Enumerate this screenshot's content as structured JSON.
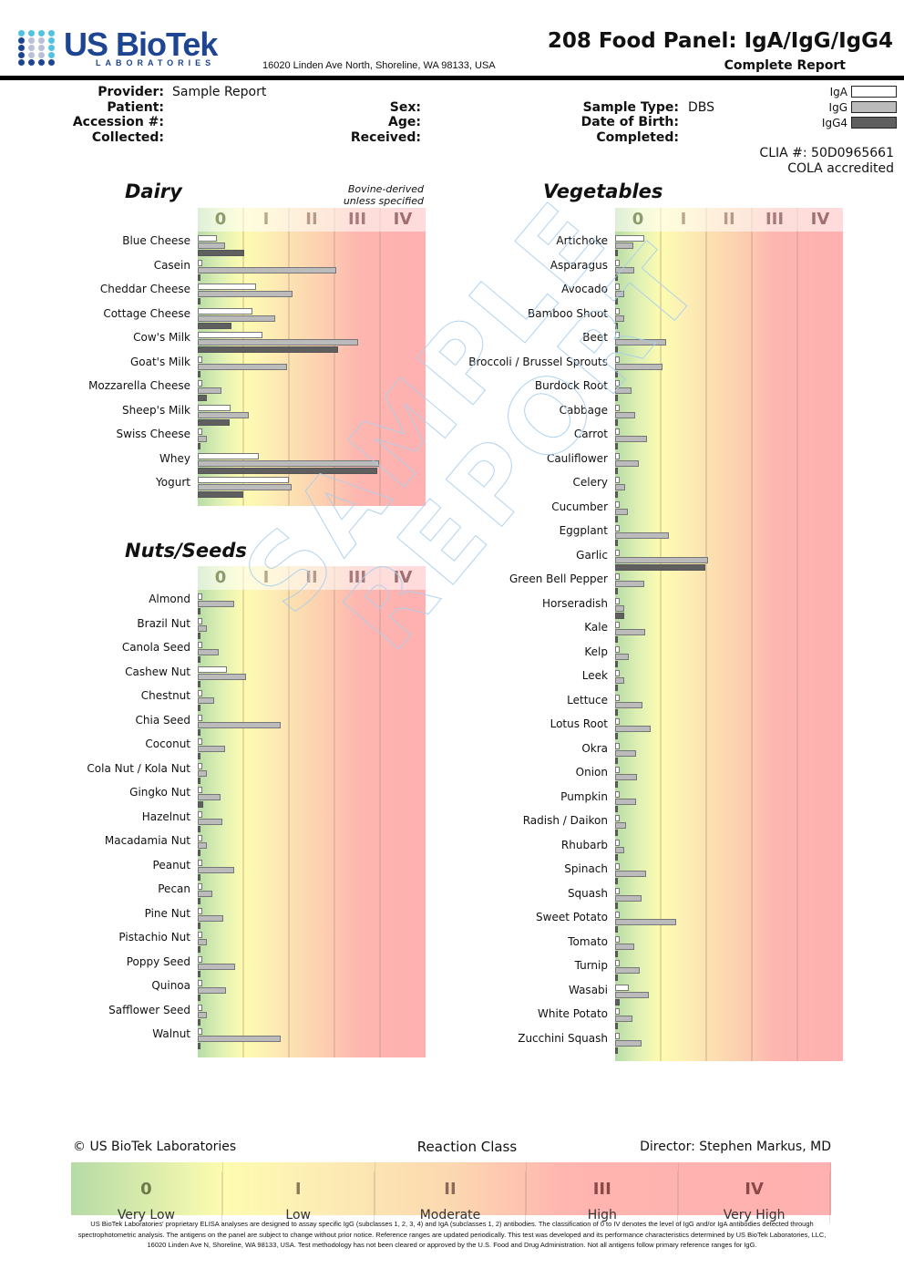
{
  "header": {
    "logo_main": "US BioTek",
    "logo_sub": "LABORATORIES",
    "address": "16020 Linden Ave North, Shoreline, WA 98133, USA",
    "title": "208 Food Panel: IgA/IgG/IgG4",
    "subtitle": "Complete Report"
  },
  "patient_info": {
    "provider_label": "Provider:",
    "provider_value": "Sample Report",
    "patient_label": "Patient:",
    "patient_value": "",
    "accession_label": "Accession #:",
    "accession_value": "",
    "collected_label": "Collected:",
    "collected_value": "",
    "sex_label": "Sex:",
    "sex_value": "",
    "age_label": "Age:",
    "age_value": "",
    "received_label": "Received:",
    "received_value": "",
    "sample_type_label": "Sample Type:",
    "sample_type_value": "DBS",
    "dob_label": "Date of Birth:",
    "dob_value": "",
    "completed_label": "Completed:",
    "completed_value": ""
  },
  "legend": [
    {
      "name": "IgA",
      "color": "#ffffff"
    },
    {
      "name": "IgG",
      "color": "#bbbbbb"
    },
    {
      "name": "IgG4",
      "color": "#5f5f5f"
    }
  ],
  "clia": {
    "number": "CLIA #: 50D0965661",
    "accreditation": "COLA accredited"
  },
  "watermark": {
    "line1": "SAMPLE",
    "line2": "REPORT"
  },
  "class_labels": [
    "0",
    "I",
    "II",
    "III",
    "IV"
  ],
  "class_label_colors": [
    "#8c9a6c",
    "#b9a98a",
    "#b99a8a",
    "#a97a7a",
    "#a07070"
  ],
  "chart_data": [
    {
      "type": "bar",
      "title": "Dairy",
      "note_line1": "Bovine-derived",
      "note_line2": "unless specified",
      "xlabel": "Reaction Class",
      "xlim": [
        0,
        5
      ],
      "series_names": [
        "IgA",
        "IgG",
        "IgG4"
      ],
      "categories": [
        "Blue Cheese",
        "Casein",
        "Cheddar Cheese",
        "Cottage Cheese",
        "Cow's Milk",
        "Goat's Milk",
        "Mozzarella Cheese",
        "Sheep's Milk",
        "Swiss Cheese",
        "Whey",
        "Yogurt"
      ],
      "series": [
        {
          "name": "IgA",
          "values": [
            0.42,
            0.1,
            1.28,
            1.2,
            1.42,
            0.1,
            0.1,
            0.72,
            0.1,
            1.34,
            2.0
          ]
        },
        {
          "name": "IgG",
          "values": [
            0.6,
            3.04,
            2.08,
            1.7,
            3.52,
            1.96,
            0.52,
            1.12,
            0.2,
            3.98,
            2.06
          ]
        },
        {
          "name": "IgG4",
          "values": [
            1.02,
            0.04,
            0.04,
            0.74,
            3.08,
            0.04,
            0.2,
            0.7,
            0.04,
            3.94,
            1.0
          ]
        }
      ]
    },
    {
      "type": "bar",
      "title": "Nuts/Seeds",
      "xlabel": "Reaction Class",
      "xlim": [
        0,
        5
      ],
      "series_names": [
        "IgA",
        "IgG",
        "IgG4"
      ],
      "categories": [
        "Almond",
        "Brazil Nut",
        "Canola Seed",
        "Cashew Nut",
        "Chestnut",
        "Chia Seed",
        "Coconut",
        "Cola Nut / Kola Nut",
        "Gingko Nut",
        "Hazelnut",
        "Macadamia Nut",
        "Peanut",
        "Pecan",
        "Pine Nut",
        "Pistachio Nut",
        "Poppy Seed",
        "Quinoa",
        "Safflower Seed",
        "Walnut"
      ],
      "series": [
        {
          "name": "IgA",
          "values": [
            0.1,
            0.1,
            0.1,
            0.64,
            0.1,
            0.1,
            0.1,
            0.1,
            0.1,
            0.1,
            0.1,
            0.1,
            0.1,
            0.1,
            0.1,
            0.1,
            0.1,
            0.1,
            0.1
          ]
        },
        {
          "name": "IgG",
          "values": [
            0.8,
            0.2,
            0.46,
            1.06,
            0.36,
            1.82,
            0.6,
            0.2,
            0.5,
            0.54,
            0.2,
            0.8,
            0.32,
            0.56,
            0.2,
            0.82,
            0.62,
            0.2,
            1.82
          ]
        },
        {
          "name": "IgG4",
          "values": [
            0.04,
            0.04,
            0.04,
            0.04,
            0.04,
            0.04,
            0.04,
            0.04,
            0.12,
            0.04,
            0.04,
            0.04,
            0.04,
            0.04,
            0.04,
            0.04,
            0.04,
            0.04,
            0.04
          ]
        }
      ]
    },
    {
      "type": "bar",
      "title": "Vegetables",
      "xlabel": "Reaction Class",
      "xlim": [
        0,
        5
      ],
      "series_names": [
        "IgA",
        "IgG",
        "IgG4"
      ],
      "categories": [
        "Artichoke",
        "Asparagus",
        "Avocado",
        "Bamboo Shoot",
        "Beet",
        "Broccoli / Brussel Sprouts",
        "Burdock Root",
        "Cabbage",
        "Carrot",
        "Cauliflower",
        "Celery",
        "Cucumber",
        "Eggplant",
        "Garlic",
        "Green Bell Pepper",
        "Horseradish",
        "Kale",
        "Kelp",
        "Leek",
        "Lettuce",
        "Lotus Root",
        "Okra",
        "Onion",
        "Pumpkin",
        "Radish / Daikon",
        "Rhubarb",
        "Spinach",
        "Squash",
        "Sweet Potato",
        "Tomato",
        "Turnip",
        "Wasabi",
        "White Potato",
        "Zucchini Squash"
      ],
      "series": [
        {
          "name": "IgA",
          "values": [
            0.64,
            0.1,
            0.1,
            0.1,
            0.1,
            0.1,
            0.1,
            0.1,
            0.1,
            0.1,
            0.1,
            0.1,
            0.1,
            0.1,
            0.1,
            0.1,
            0.1,
            0.1,
            0.1,
            0.1,
            0.1,
            0.1,
            0.1,
            0.1,
            0.1,
            0.1,
            0.1,
            0.1,
            0.1,
            0.1,
            0.1,
            0.3,
            0.1,
            0.1
          ]
        },
        {
          "name": "IgG",
          "values": [
            0.4,
            0.42,
            0.2,
            0.2,
            1.12,
            1.04,
            0.36,
            0.44,
            0.7,
            0.52,
            0.22,
            0.28,
            1.18,
            2.04,
            0.64,
            0.2,
            0.66,
            0.3,
            0.2,
            0.6,
            0.78,
            0.46,
            0.48,
            0.46,
            0.24,
            0.2,
            0.68,
            0.58,
            1.34,
            0.42,
            0.54,
            0.74,
            0.38,
            0.58
          ]
        },
        {
          "name": "IgG4",
          "values": [
            0.04,
            0.04,
            0.04,
            0.04,
            0.04,
            0.04,
            0.04,
            0.04,
            0.04,
            0.04,
            0.04,
            0.04,
            0.04,
            1.98,
            0.04,
            0.2,
            0.04,
            0.04,
            0.04,
            0.04,
            0.04,
            0.04,
            0.04,
            0.04,
            0.04,
            0.04,
            0.04,
            0.04,
            0.04,
            0.04,
            0.04,
            0.1,
            0.04,
            0.04
          ]
        }
      ]
    }
  ],
  "footer": {
    "copyright": "© US BioTek Laboratories",
    "reaction_class_title": "Reaction Class",
    "director": "Director: Stephen Markus, MD",
    "classes": [
      {
        "num": "0",
        "label": "Very Low",
        "color": "#6d7a4a"
      },
      {
        "num": "I",
        "label": "Low",
        "color": "#8a7a5a"
      },
      {
        "num": "II",
        "label": "Moderate",
        "color": "#8a6a5a"
      },
      {
        "num": "III",
        "label": "High",
        "color": "#8a4a4a"
      },
      {
        "num": "IV",
        "label": "Very High",
        "color": "#8a4a4a"
      }
    ],
    "disclaimer": "US BioTek Laboratories' proprietary ELISA analyses are designed to assay specific IgG (subclasses 1, 2, 3, 4) and IgA (subclasses 1, 2) antibodies. The classification of 0 to IV denotes the level of IgG and/or IgA antibodies detected through spectrophotometric analysis. The antigens on the panel are subject to change without prior notice. Reference ranges are updated periodically. This test was developed and its performance characteristics determined by US BioTek Laboratories, LLC, 16020 Linden Ave N, Shoreline, WA 98133, USA. Test methodology has not been cleared or approved by the U.S. Food and Drug Administration. Not all antigens follow primary reference ranges for IgG."
  }
}
